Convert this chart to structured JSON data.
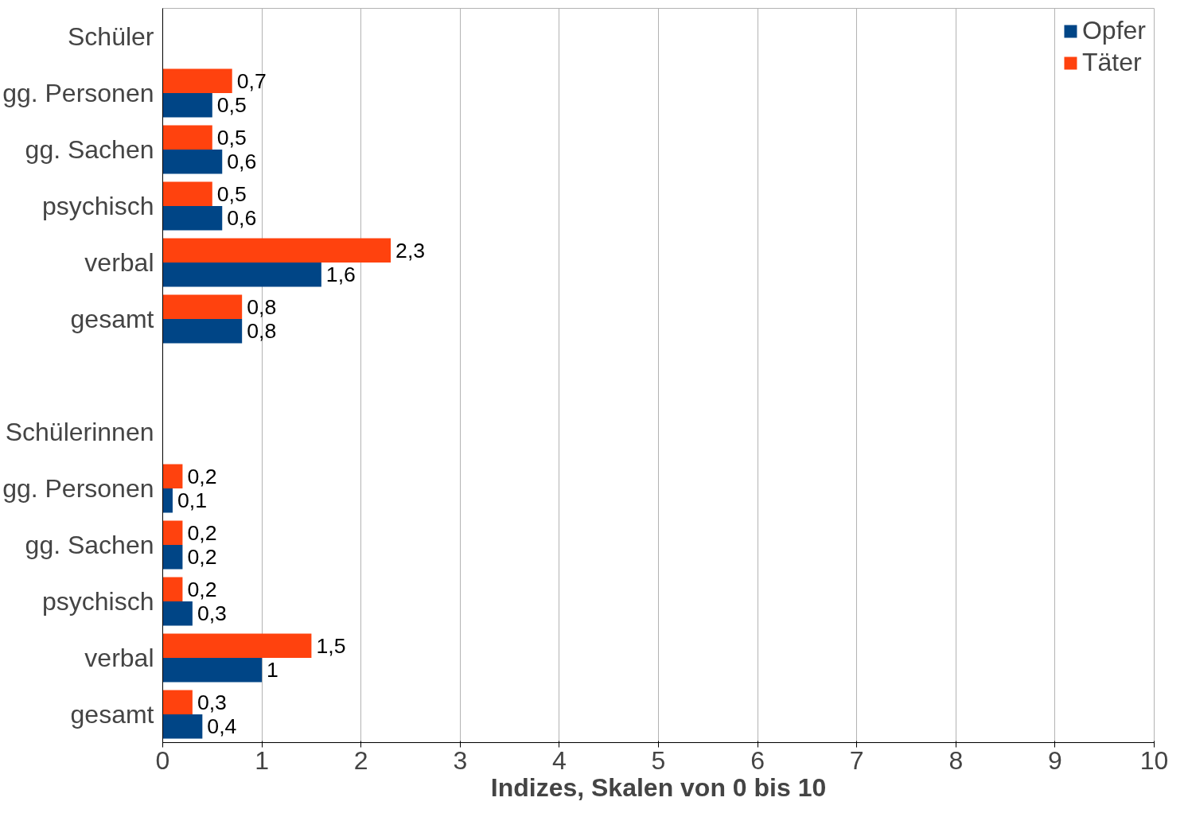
{
  "chart_data": {
    "type": "bar",
    "orientation": "horizontal",
    "xlabel": "Indizes, Skalen von 0 bis 10",
    "categories": [
      "Schüler",
      "gg. Personen",
      "gg. Sachen",
      "psychisch",
      "verbal",
      "gesamt",
      null,
      "Schülerinnen",
      "gg. Personen",
      "gg. Sachen",
      "psychisch",
      "verbal",
      "gesamt"
    ],
    "series": [
      {
        "name": "Opfer",
        "color": "#004586",
        "values": [
          null,
          0.5,
          0.6,
          0.6,
          1.6,
          0.8,
          null,
          null,
          0.1,
          0.2,
          0.3,
          1,
          0.4
        ],
        "value_labels": [
          null,
          "0,5",
          "0,6",
          "0,6",
          "1,6",
          "0,8",
          null,
          null,
          "0,1",
          "0,2",
          "0,3",
          "1",
          "0,4"
        ]
      },
      {
        "name": "Täter",
        "color": "#ff420e",
        "values": [
          null,
          0.7,
          0.5,
          0.5,
          2.3,
          0.8,
          null,
          null,
          0.2,
          0.2,
          0.2,
          1.5,
          0.3
        ],
        "value_labels": [
          null,
          "0,7",
          "0,5",
          "0,5",
          "2,3",
          "0,8",
          null,
          null,
          "0,2",
          "0,2",
          "0,2",
          "1,5",
          "0,3"
        ]
      }
    ],
    "xlim": [
      0,
      10
    ],
    "xticks": [
      0,
      1,
      2,
      3,
      4,
      5,
      6,
      7,
      8,
      9,
      10
    ],
    "grid": "x",
    "legend": "top right"
  }
}
